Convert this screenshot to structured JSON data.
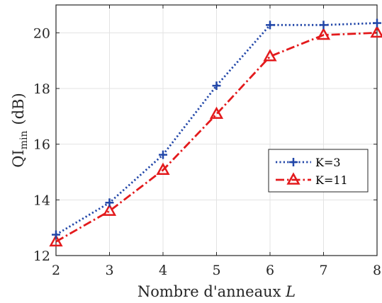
{
  "chart_data": {
    "type": "line",
    "x": [
      2,
      3,
      4,
      5,
      6,
      7,
      8
    ],
    "xlabel_text": "Nombre d'anneaux ",
    "xlabel_var": "L",
    "ylabel_base": "QI",
    "ylabel_sub": "min",
    "ylabel_unit": "(dB)",
    "xlim": [
      2,
      8
    ],
    "ylim": [
      12,
      21
    ],
    "xticks": [
      2,
      3,
      4,
      5,
      6,
      7,
      8
    ],
    "yticks": [
      12,
      14,
      16,
      18,
      20
    ],
    "grid": true,
    "legend_position": "center-right",
    "series": [
      {
        "name": "K=3",
        "values": [
          12.75,
          13.9,
          15.62,
          18.1,
          20.28,
          20.28,
          20.35
        ],
        "color": "#2146a8",
        "line_style": "dotted",
        "marker": "plus"
      },
      {
        "name": "K=11",
        "values": [
          12.5,
          13.6,
          15.07,
          17.08,
          19.15,
          19.92,
          20.0
        ],
        "color": "#e31a1c",
        "line_style": "dash-dot",
        "marker": "triangle"
      }
    ]
  }
}
